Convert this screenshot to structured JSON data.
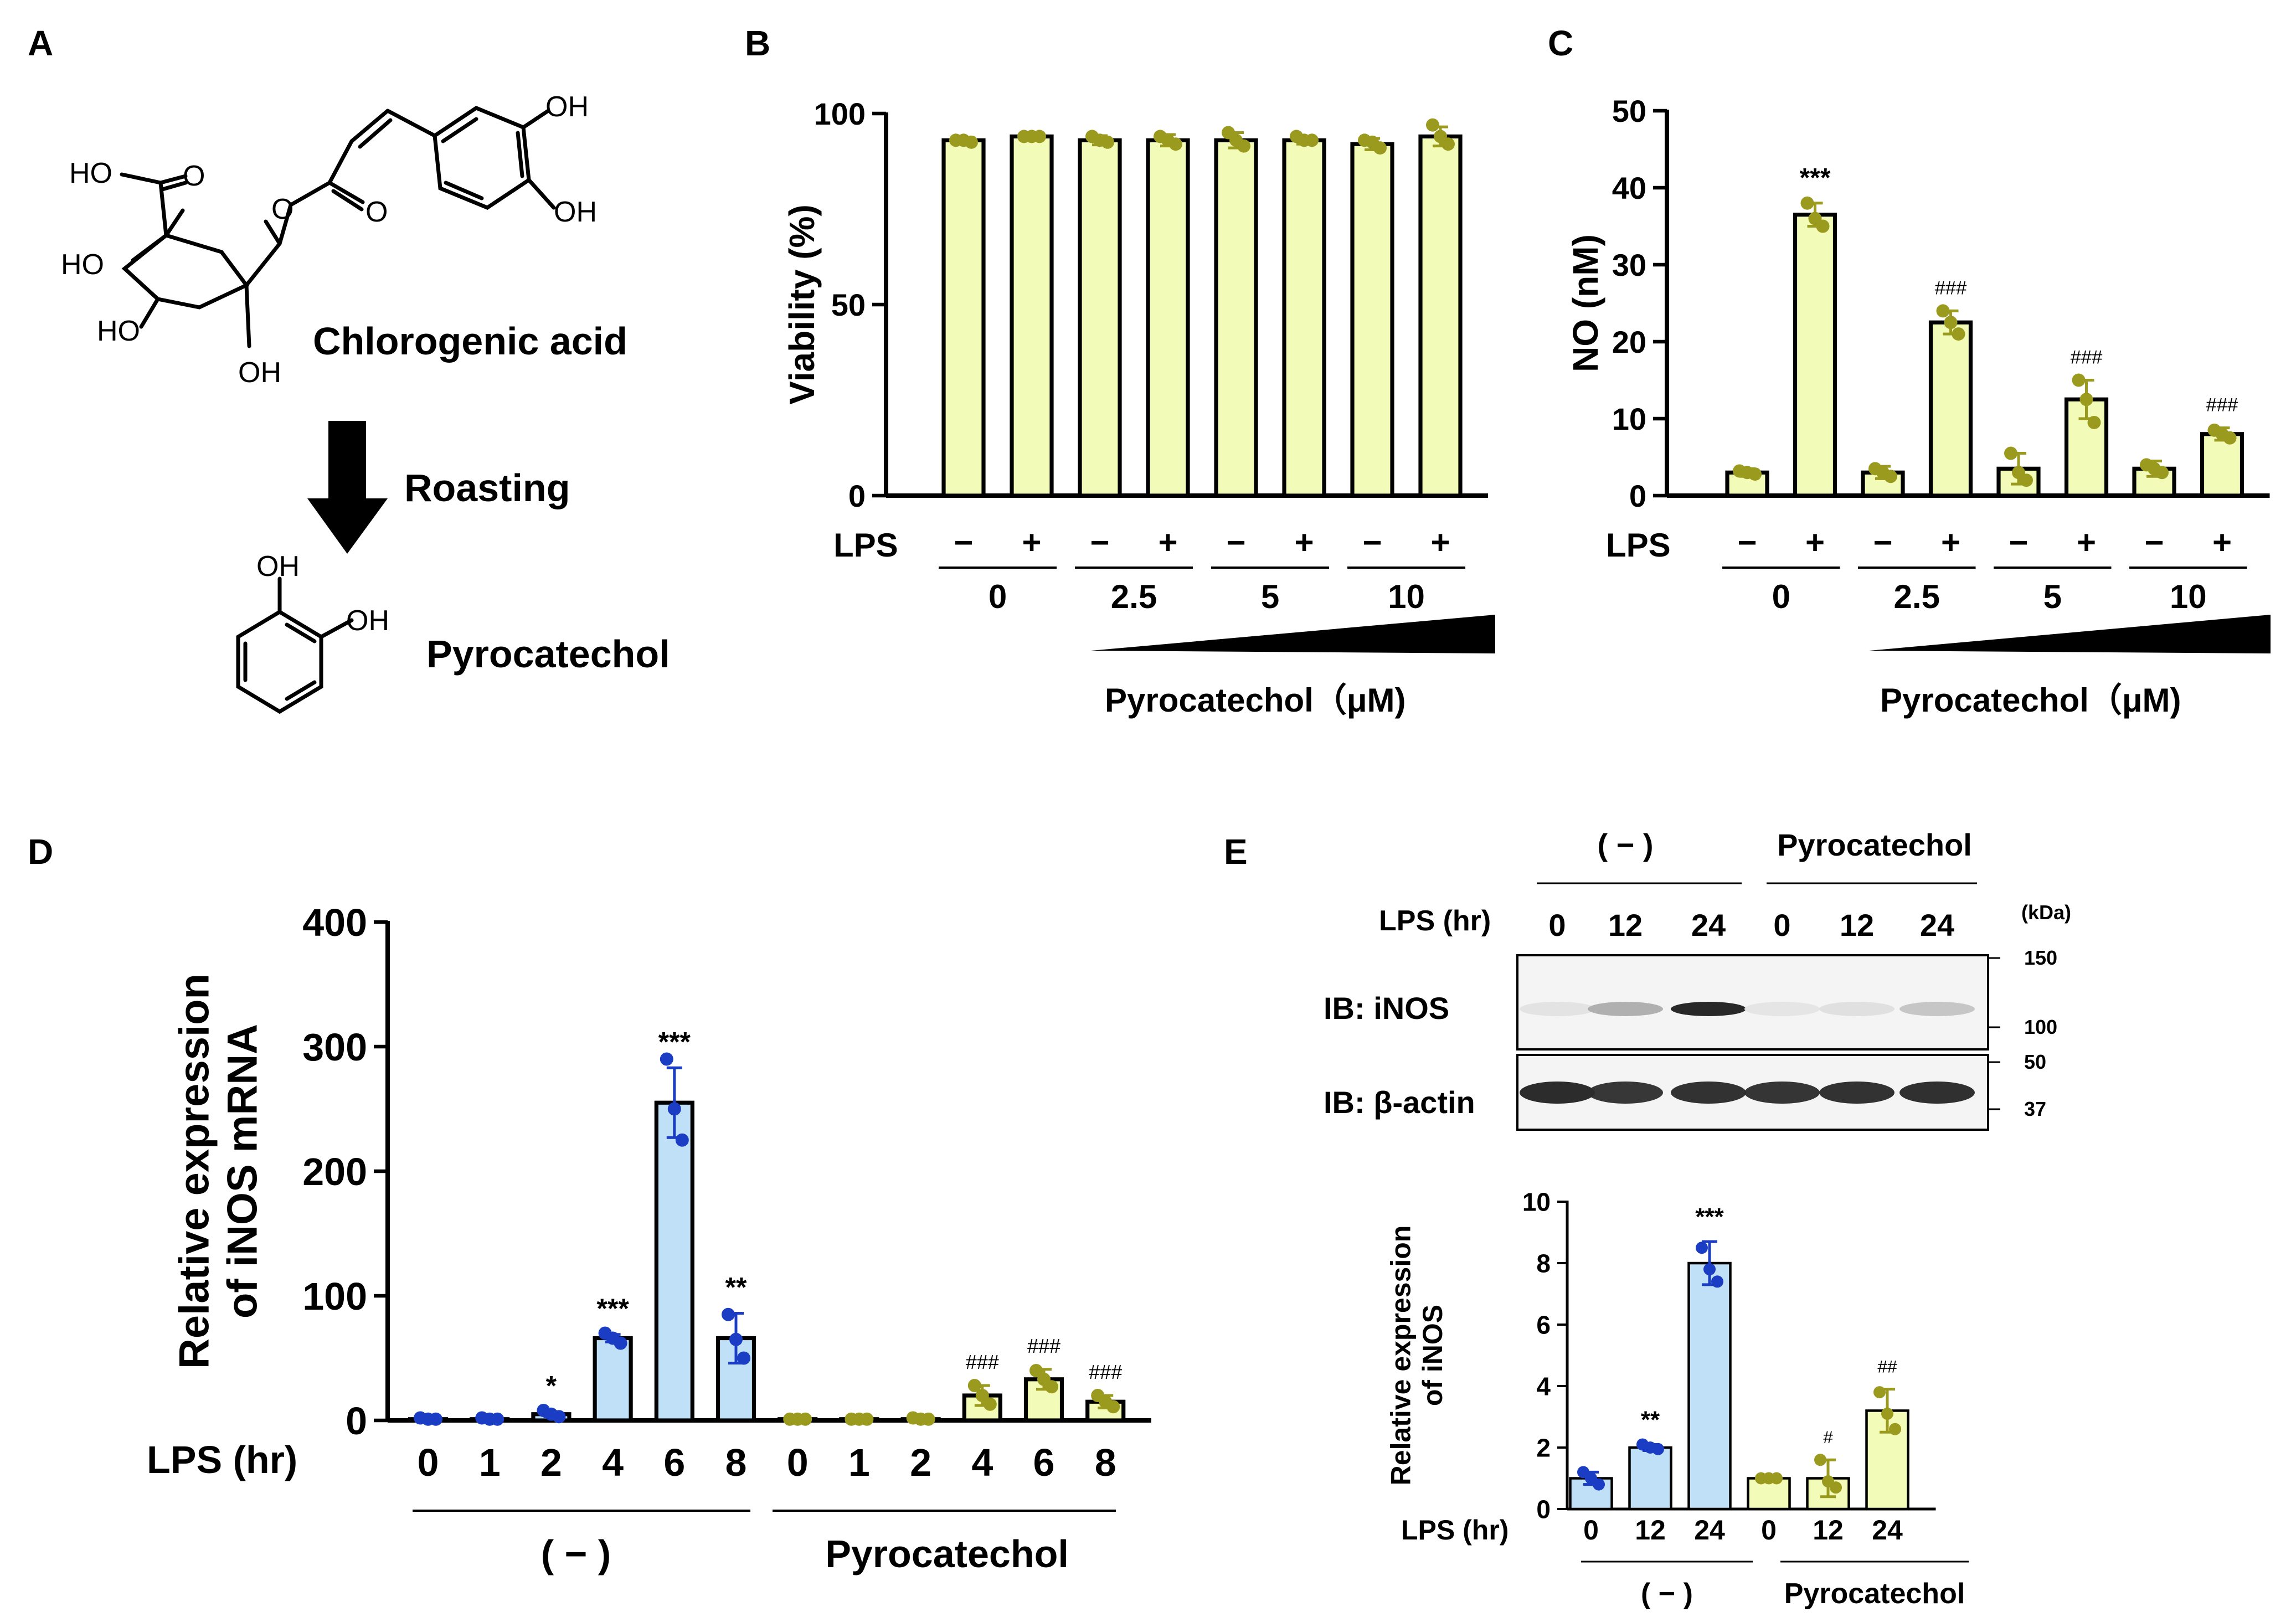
{
  "colors": {
    "accent_yellow_fill": "#f3fbb8",
    "olive_points": "#9a9a1f",
    "blue_fill": "#bfe0f7",
    "blue_points": "#1a3dc4",
    "bar_stroke": "#000000"
  },
  "panel_a": {
    "label": "A",
    "structure1": {
      "substituents": [
        "OH",
        "OH",
        "HO",
        "O",
        "O",
        "O",
        "HO",
        "HO",
        "OH"
      ],
      "name": "Chlorogenic acid"
    },
    "arrow_label": "Roasting",
    "structure2": {
      "substituents": [
        "OH",
        "OH"
      ],
      "name": "Pyrocatechol"
    }
  },
  "panel_b": {
    "label": "B",
    "lps_label": "LPS",
    "lps_signs": [
      "−",
      "+",
      "−",
      "+",
      "−",
      "+",
      "−",
      "+"
    ],
    "dose_labels": [
      "0",
      "2.5",
      "5",
      "10"
    ],
    "compound_label": "Pyrocatechol（μM)"
  },
  "panel_c": {
    "label": "C",
    "lps_label": "LPS",
    "lps_signs": [
      "−",
      "+",
      "−",
      "+",
      "−",
      "+",
      "−",
      "+"
    ],
    "dose_labels": [
      "0",
      "2.5",
      "5",
      "10"
    ],
    "compound_label": "Pyrocatechol（μM)"
  },
  "panel_d": {
    "label": "D",
    "lps_label": "LPS (hr)",
    "group_labels": [
      "( − )",
      "Pyrocatechol"
    ]
  },
  "panel_e": {
    "label": "E",
    "blot": {
      "group_labels": [
        "( − )",
        "Pyrocatechol"
      ],
      "lps_label": "LPS (hr)",
      "lanes": [
        "0",
        "12",
        "24",
        "0",
        "12",
        "24"
      ],
      "kda_label": "(kDa)",
      "rows": [
        {
          "label": "IB: iNOS",
          "markers": [
            "150",
            "100"
          ],
          "band_intensity": [
            0.04,
            0.28,
            0.92,
            0.03,
            0.06,
            0.18
          ]
        },
        {
          "label": "IB: β-actin",
          "markers": [
            "50",
            "37"
          ],
          "band_intensity": [
            0.9,
            0.85,
            0.87,
            0.86,
            0.87,
            0.88
          ]
        }
      ]
    },
    "lps_label": "LPS (hr)",
    "group_labels": [
      "( − )",
      "Pyrocatechol"
    ]
  },
  "chart_data": [
    {
      "id": "B",
      "type": "bar",
      "ylabel": "Viability (%)",
      "ylim": [
        0,
        100
      ],
      "yticks": [
        0,
        50,
        100
      ],
      "categories": [
        "0 −",
        "0 +",
        "2.5 −",
        "2.5 +",
        "5 −",
        "5 +",
        "10 −",
        "10 +"
      ],
      "values": [
        93,
        94,
        93,
        93,
        93,
        93,
        92,
        94
      ],
      "errors": [
        0.8,
        0.5,
        1.2,
        1.5,
        2.0,
        1.0,
        1.5,
        2.5
      ],
      "points": [
        [
          93,
          93,
          92.5
        ],
        [
          94,
          94,
          94
        ],
        [
          94,
          93,
          92.5
        ],
        [
          94,
          93,
          92
        ],
        [
          95,
          93,
          91.5
        ],
        [
          94,
          93,
          93
        ],
        [
          93,
          92.5,
          91
        ],
        [
          97,
          94,
          92
        ]
      ],
      "colors": [
        "#f3fbb8",
        "#f3fbb8",
        "#f3fbb8",
        "#f3fbb8",
        "#f3fbb8",
        "#f3fbb8",
        "#f3fbb8",
        "#f3fbb8"
      ],
      "point_color": "#9a9a1f",
      "annotations": [
        "",
        "",
        "",
        "",
        "",
        "",
        "",
        ""
      ]
    },
    {
      "id": "C",
      "type": "bar",
      "ylabel": "NO (nM)",
      "ylim": [
        0,
        50
      ],
      "yticks": [
        0,
        10,
        20,
        30,
        40,
        50
      ],
      "categories": [
        "0 −",
        "0 +",
        "2.5 −",
        "2.5 +",
        "5 −",
        "5 +",
        "10 −",
        "10 +"
      ],
      "values": [
        3,
        36.5,
        3,
        22.5,
        3.5,
        12.5,
        3.5,
        8
      ],
      "errors": [
        0.5,
        1.5,
        0.8,
        1.5,
        2.0,
        2.5,
        1.0,
        0.8
      ],
      "points": [
        [
          3.2,
          3,
          2.8
        ],
        [
          38,
          36,
          35
        ],
        [
          3.5,
          3,
          2.5
        ],
        [
          24,
          22.5,
          21
        ],
        [
          5.5,
          3,
          2
        ],
        [
          15,
          12.5,
          9.5
        ],
        [
          4,
          3.5,
          3
        ],
        [
          8.5,
          8,
          7.5
        ]
      ],
      "colors": [
        "#f3fbb8",
        "#f3fbb8",
        "#f3fbb8",
        "#f3fbb8",
        "#f3fbb8",
        "#f3fbb8",
        "#f3fbb8",
        "#f3fbb8"
      ],
      "point_color": "#9a9a1f",
      "annotations": [
        "",
        "***",
        "",
        "###",
        "",
        "###",
        "",
        "###"
      ]
    },
    {
      "id": "D",
      "type": "bar",
      "ylabel": "Relative expression\nof iNOS mRNA",
      "ylim": [
        0,
        400
      ],
      "yticks": [
        0,
        100,
        200,
        300,
        400
      ],
      "categories": [
        "0",
        "1",
        "2",
        "4",
        "6",
        "8",
        "0",
        "1",
        "2",
        "4",
        "6",
        "8"
      ],
      "values": [
        1,
        1,
        5,
        66,
        255,
        66,
        1,
        1,
        1,
        20,
        33,
        15
      ],
      "errors": [
        0.5,
        0.5,
        2,
        3,
        28,
        20,
        0.5,
        0.5,
        0.5,
        8,
        8,
        5
      ],
      "points": [
        [
          2,
          1,
          1
        ],
        [
          2,
          1,
          1
        ],
        [
          8,
          5,
          3
        ],
        [
          70,
          66,
          62
        ],
        [
          290,
          250,
          225
        ],
        [
          85,
          65,
          50
        ],
        [
          1,
          1,
          1
        ],
        [
          1,
          1,
          1
        ],
        [
          2,
          1,
          1
        ],
        [
          28,
          20,
          13
        ],
        [
          40,
          33,
          27
        ],
        [
          20,
          15,
          11
        ]
      ],
      "colors": [
        "#bfe0f7",
        "#bfe0f7",
        "#bfe0f7",
        "#bfe0f7",
        "#bfe0f7",
        "#bfe0f7",
        "#f3fbb8",
        "#f3fbb8",
        "#f3fbb8",
        "#f3fbb8",
        "#f3fbb8",
        "#f3fbb8"
      ],
      "point_colors": [
        "#1a3dc4",
        "#1a3dc4",
        "#1a3dc4",
        "#1a3dc4",
        "#1a3dc4",
        "#1a3dc4",
        "#9a9a1f",
        "#9a9a1f",
        "#9a9a1f",
        "#9a9a1f",
        "#9a9a1f",
        "#9a9a1f"
      ],
      "annotations": [
        "",
        "",
        "*",
        "***",
        "***",
        "**",
        "",
        "",
        "",
        "###",
        "###",
        "###"
      ]
    },
    {
      "id": "E",
      "type": "bar",
      "ylabel": "Relative expression\nof iNOS",
      "ylim": [
        0,
        10
      ],
      "yticks": [
        0,
        2,
        4,
        6,
        8,
        10
      ],
      "categories": [
        "0",
        "12",
        "24",
        "0",
        "12",
        "24"
      ],
      "values": [
        1,
        2,
        8,
        1,
        1,
        3.2
      ],
      "errors": [
        0.2,
        0.1,
        0.7,
        0.05,
        0.6,
        0.7
      ],
      "points": [
        [
          1.2,
          1,
          0.8
        ],
        [
          2.1,
          2,
          1.95
        ],
        [
          8.5,
          7.8,
          7.4
        ],
        [
          1,
          1,
          1
        ],
        [
          1.6,
          0.9,
          0.7
        ],
        [
          3.8,
          3.1,
          2.6
        ]
      ],
      "colors": [
        "#bfe0f7",
        "#bfe0f7",
        "#bfe0f7",
        "#f3fbb8",
        "#f3fbb8",
        "#f3fbb8"
      ],
      "point_colors": [
        "#1a3dc4",
        "#1a3dc4",
        "#1a3dc4",
        "#9a9a1f",
        "#9a9a1f",
        "#9a9a1f"
      ],
      "annotations": [
        "",
        "**",
        "***",
        "",
        "#",
        "##"
      ]
    }
  ]
}
